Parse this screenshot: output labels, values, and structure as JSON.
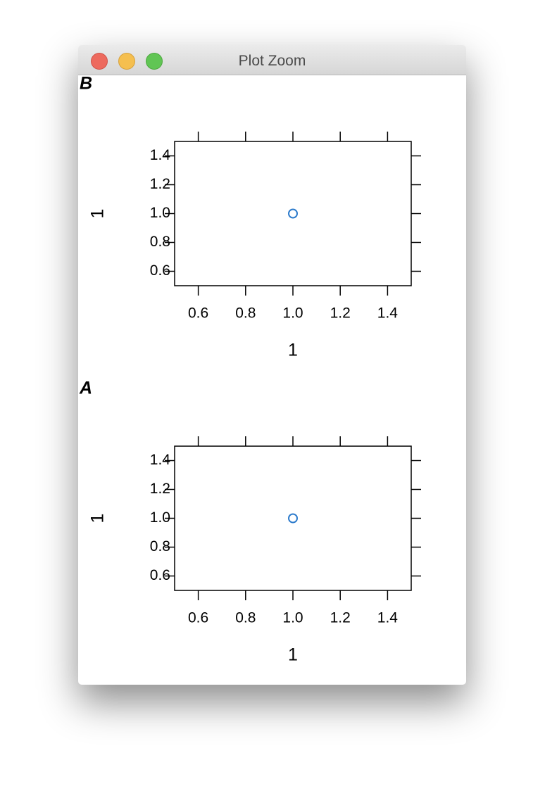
{
  "window": {
    "title": "Plot Zoom"
  },
  "chart_data": [
    {
      "type": "scatter",
      "title": "B",
      "x": [
        1
      ],
      "values": [
        1
      ],
      "color": "#2e7ccc",
      "xlabel": "1",
      "ylabel": "1",
      "xlim": [
        0.5,
        1.5
      ],
      "ylim": [
        0.5,
        1.5
      ],
      "xticks": [
        0.6,
        0.8,
        {
          "value": 1,
          "label": "1.0"
        },
        1.2,
        1.4
      ],
      "yticks": [
        0.6,
        0.8,
        {
          "value": 1,
          "label": "1.0"
        },
        1.2,
        1.4
      ]
    },
    {
      "type": "scatter",
      "title": "A",
      "x": [
        1
      ],
      "values": [
        1
      ],
      "color": "#2e7ccc",
      "xlabel": "1",
      "ylabel": "1",
      "xlim": [
        0.5,
        1.5
      ],
      "ylim": [
        0.5,
        1.5
      ],
      "xticks": [
        0.6,
        0.8,
        {
          "value": 1,
          "label": "1.0"
        },
        1.2,
        1.4
      ],
      "yticks": [
        0.6,
        0.8,
        {
          "value": 1,
          "label": "1.0"
        },
        1.2,
        1.4
      ]
    }
  ]
}
